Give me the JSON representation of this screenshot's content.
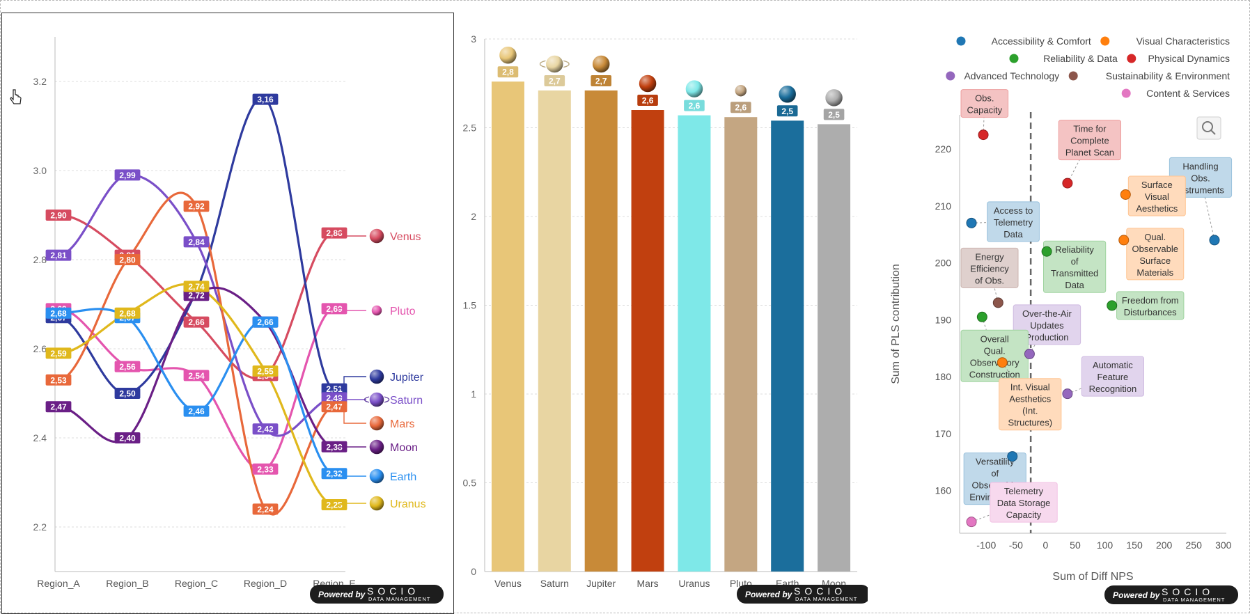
{
  "watermark": {
    "powered": "Powered by",
    "brand": "SOCIO",
    "sub": "DATA MANAGEMENT"
  },
  "chart_data": [
    {
      "type": "line",
      "categories": [
        "Region_A",
        "Region_B",
        "Region_C",
        "Region_D",
        "Region_E"
      ],
      "ylim": [
        2.1,
        3.3
      ],
      "yticks": [
        "2.2",
        "2.4",
        "2.6",
        "2.8",
        "3.0",
        "3.2"
      ],
      "grid": true,
      "legend": "right",
      "series": [
        {
          "name": "Venus",
          "color": "#d64b60",
          "values": [
            2.9,
            2.81,
            2.66,
            2.54,
            2.86
          ],
          "labels": [
            "2,90",
            "2,81",
            "2,66",
            "2,54",
            "2,86"
          ]
        },
        {
          "name": "Pluto",
          "color": "#e455ae",
          "values": [
            2.69,
            2.56,
            2.54,
            2.33,
            2.69
          ],
          "labels": [
            "2,69",
            "2,56",
            "2,54",
            "2,33",
            "2,69"
          ]
        },
        {
          "name": "Jupiter",
          "color": "#2e3a9e",
          "values": [
            2.67,
            2.5,
            2.73,
            3.16,
            2.51
          ],
          "labels": [
            "2,67",
            "2,50",
            "2,73",
            "3,16",
            "2,51"
          ]
        },
        {
          "name": "Saturn",
          "color": "#7a4fc8",
          "values": [
            2.81,
            2.99,
            2.84,
            2.42,
            2.49
          ],
          "labels": [
            "2,81",
            "2,99",
            "2,84",
            "2,42",
            "2,49"
          ]
        },
        {
          "name": "Mars",
          "color": "#e8683a",
          "values": [
            2.53,
            2.8,
            2.92,
            2.24,
            2.47
          ],
          "labels": [
            "2,53",
            "2,80",
            "2,92",
            "2,24",
            "2,47"
          ]
        },
        {
          "name": "Moon",
          "color": "#6a1f86",
          "values": [
            2.47,
            2.4,
            2.72,
            2.66,
            2.38
          ],
          "labels": [
            "2,47",
            "2,40",
            "2,72",
            "2,66",
            "2,38"
          ]
        },
        {
          "name": "Earth",
          "color": "#2a8ff0",
          "values": [
            2.68,
            2.67,
            2.46,
            2.66,
            2.32
          ],
          "labels": [
            "2,68",
            "2,67",
            "2,46",
            "2,66",
            "2,32"
          ]
        },
        {
          "name": "Uranus",
          "color": "#e0b81c",
          "values": [
            2.59,
            2.68,
            2.74,
            2.55,
            2.25
          ],
          "labels": [
            "2,59",
            "2,68",
            "2,74",
            "2,55",
            "2,25"
          ]
        }
      ]
    },
    {
      "type": "bar",
      "categories": [
        "Venus",
        "Saturn",
        "Jupiter",
        "Mars",
        "Uranus",
        "Pluto",
        "Earth",
        "Moon"
      ],
      "values": [
        2.76,
        2.71,
        2.71,
        2.6,
        2.57,
        2.56,
        2.54,
        2.52
      ],
      "labels": [
        "2,8",
        "2,7",
        "2,7",
        "2,6",
        "2,6",
        "2,6",
        "2,5",
        "2,5"
      ],
      "colors": [
        "#e8c678",
        "#e8d5a2",
        "#c88a38",
        "#c1400f",
        "#7ee8e8",
        "#c4a682",
        "#1b6e9c",
        "#adadad"
      ],
      "ylim": [
        0,
        3
      ],
      "yticks": [
        "0",
        "0.5",
        "1",
        "1.5",
        "2",
        "2.5",
        "3"
      ],
      "grid": true
    },
    {
      "type": "scatter",
      "xlabel": "Sum of Diff NPS",
      "ylabel": "Sum of PLS contribution",
      "xlim": [
        -145,
        305
      ],
      "ylim": [
        152.5,
        226
      ],
      "xticks": [
        -100,
        -50,
        0,
        50,
        100,
        150,
        200,
        250,
        300
      ],
      "yticks": [
        160,
        170,
        180,
        190,
        200,
        210,
        220
      ],
      "reference_x": -25,
      "legend": "top-right",
      "categories": [
        {
          "name": "Accessibility & Comfort",
          "color": "#1f77b4"
        },
        {
          "name": "Visual Characteristics",
          "color": "#ff7f0e"
        },
        {
          "name": "Reliability & Data",
          "color": "#2ca02c"
        },
        {
          "name": "Physical Dynamics",
          "color": "#d62728"
        },
        {
          "name": "Advanced Technology",
          "color": "#9467bd"
        },
        {
          "name": "Sustainability & Environment",
          "color": "#8c564b"
        },
        {
          "name": "Content & Services",
          "color": "#e377c2"
        }
      ],
      "points": [
        {
          "label": "Obs. Capacity",
          "x": -105,
          "y": 222.5,
          "cat": 3
        },
        {
          "label": "Time for Complete Planet Scan",
          "x": 37,
          "y": 214,
          "cat": 3
        },
        {
          "label": "Handling Obs. Instruments",
          "x": 285,
          "y": 204,
          "cat": 0
        },
        {
          "label": "Access to Telemetry Data",
          "x": -125,
          "y": 207,
          "cat": 0
        },
        {
          "label": "Surface Visual Aesthetics",
          "x": 135,
          "y": 212,
          "cat": 1
        },
        {
          "label": "Qual. Observable Surface Materials",
          "x": 132,
          "y": 204,
          "cat": 1
        },
        {
          "label": "Reliability of Transmitted Data",
          "x": 2,
          "y": 202,
          "cat": 2
        },
        {
          "label": "Energy Efficiency of Obs.",
          "x": -80,
          "y": 193,
          "cat": 5
        },
        {
          "label": "Freedom from Disturbances",
          "x": 112,
          "y": 192.5,
          "cat": 2
        },
        {
          "label": "Over-the-Air Updates Production",
          "x": -27,
          "y": 184,
          "cat": 4
        },
        {
          "label": "Overall Qual. Observatory Construction",
          "x": -107,
          "y": 190.5,
          "cat": 2
        },
        {
          "label": "Automatic Feature Recognition",
          "x": 37,
          "y": 177,
          "cat": 4
        },
        {
          "label": "Int. Visual Aesthetics (Int. Structures)",
          "x": -73,
          "y": 182.5,
          "cat": 1
        },
        {
          "label": "Versatility of Observable Environment",
          "x": -56,
          "y": 166,
          "cat": 0
        },
        {
          "label": "Telemetry Data Storage Capacity",
          "x": -125,
          "y": 154.5,
          "cat": 6
        }
      ]
    }
  ]
}
